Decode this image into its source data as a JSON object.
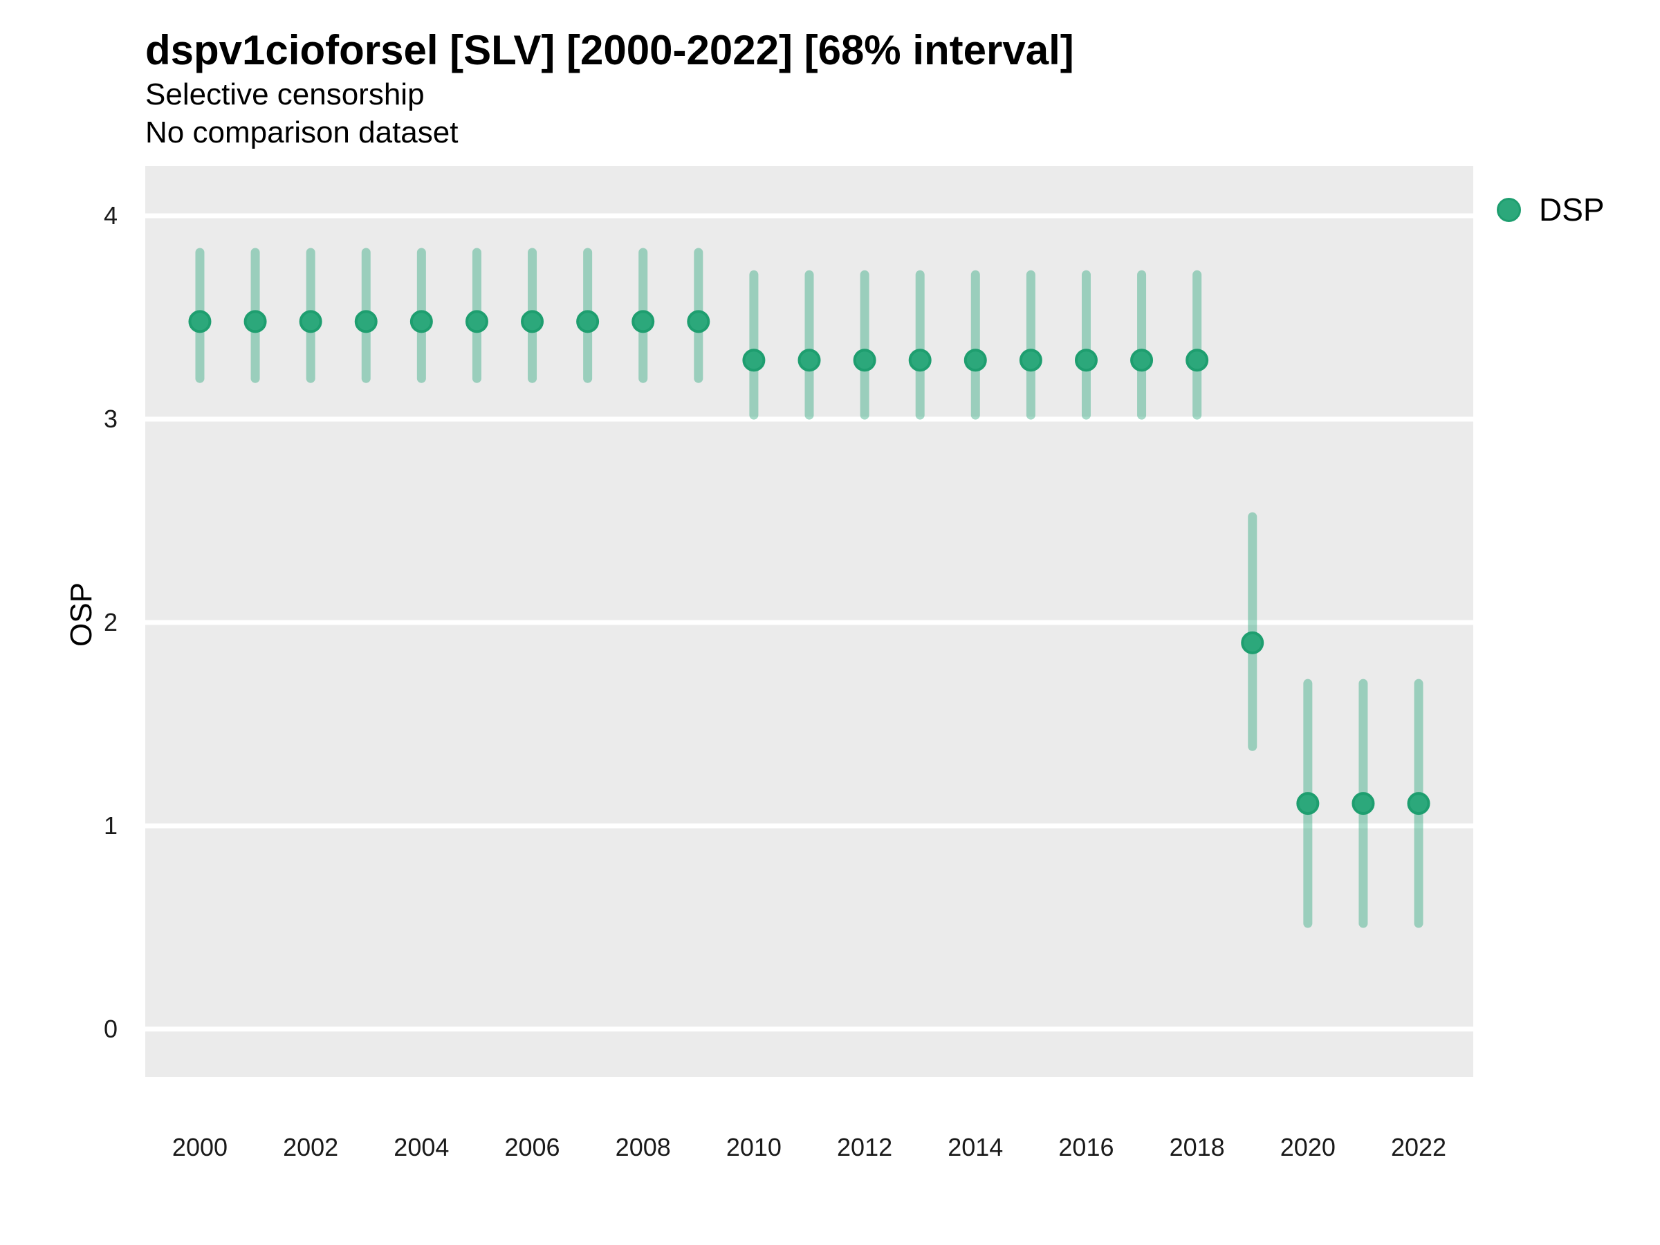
{
  "header": {
    "title": "dspv1cioforsel [SLV] [2000-2022] [68% interval]",
    "subtitle1": "Selective censorship",
    "subtitle2": "No comparison dataset"
  },
  "y_axis": {
    "title": "OSP",
    "ticks": [
      4,
      3,
      2,
      1,
      0
    ]
  },
  "x_axis": {
    "ticks": [
      2000,
      2002,
      2004,
      2006,
      2008,
      2010,
      2012,
      2014,
      2016,
      2018,
      2020,
      2022
    ]
  },
  "legend": {
    "label": "DSP"
  },
  "colors": {
    "panel_bg": "#EBEBEB",
    "gridline": "#FFFFFF",
    "point_fill": "#2CA87B",
    "point_stroke": "#1E9E6F",
    "interval_bar": "rgba(44,168,123,0.42)",
    "tick_text": "#1A1A1A",
    "text": "#000000"
  },
  "chart_data": {
    "type": "scatter",
    "subtype": "pointrange",
    "title": "dspv1cioforsel [SLV] [2000-2022] [68% interval]",
    "subtitle": [
      "Selective censorship",
      "No comparison dataset"
    ],
    "interval_level": "68%",
    "xlabel": "",
    "ylabel": "OSP",
    "xlim": [
      1999.014,
      2022.986
    ],
    "ylim": [
      -0.235,
      4.245
    ],
    "grid": "major-horizontal",
    "legend_position": "right",
    "x": [
      2000,
      2001,
      2002,
      2003,
      2004,
      2005,
      2006,
      2007,
      2008,
      2009,
      2010,
      2011,
      2012,
      2013,
      2014,
      2015,
      2016,
      2017,
      2018,
      2019,
      2020,
      2021,
      2022
    ],
    "series": [
      {
        "name": "DSP",
        "values": [
          3.48,
          3.48,
          3.48,
          3.48,
          3.48,
          3.48,
          3.48,
          3.48,
          3.48,
          3.48,
          3.29,
          3.29,
          3.29,
          3.29,
          3.29,
          3.29,
          3.29,
          3.29,
          3.29,
          1.9,
          1.11,
          1.11,
          1.11
        ],
        "lo": [
          3.2,
          3.2,
          3.2,
          3.2,
          3.2,
          3.2,
          3.2,
          3.2,
          3.2,
          3.2,
          3.02,
          3.02,
          3.02,
          3.02,
          3.02,
          3.02,
          3.02,
          3.02,
          3.02,
          1.39,
          0.52,
          0.52,
          0.52
        ],
        "hi": [
          3.82,
          3.82,
          3.82,
          3.82,
          3.82,
          3.82,
          3.82,
          3.82,
          3.82,
          3.82,
          3.71,
          3.71,
          3.71,
          3.71,
          3.71,
          3.71,
          3.71,
          3.71,
          3.71,
          2.52,
          1.7,
          1.7,
          1.7
        ]
      }
    ]
  }
}
